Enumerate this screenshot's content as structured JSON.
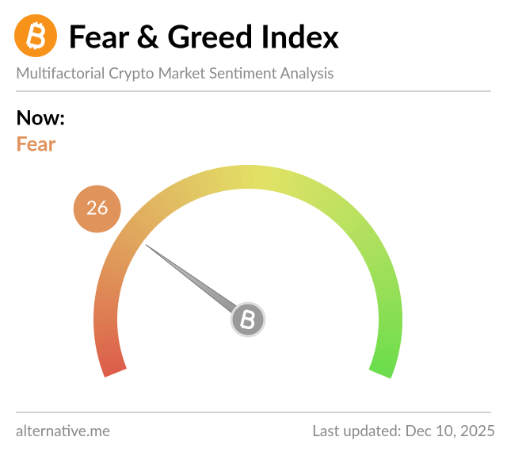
{
  "chart_data": {
    "type": "gauge",
    "title": "Fear & Greed Index",
    "subtitle": "Multifactorial Crypto Market Sentiment Analysis",
    "now_label": "Now:",
    "classification": "Fear",
    "value": 26,
    "ylim": [
      0,
      100
    ],
    "color": "#e0935a",
    "source": "alternative.me",
    "updated": "Last updated: Dec 10, 2025"
  }
}
